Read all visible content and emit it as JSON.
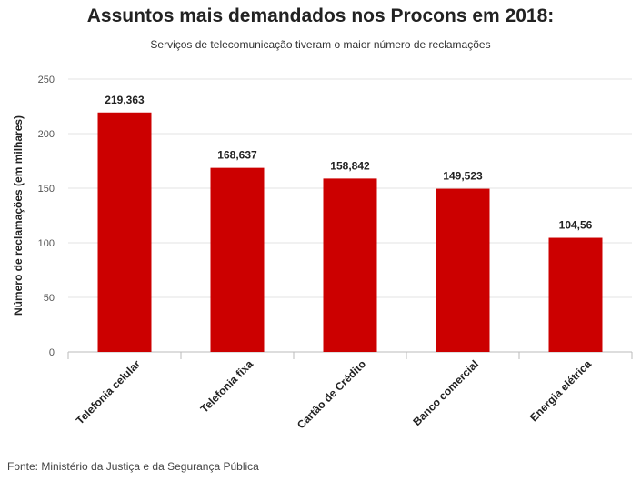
{
  "header": {
    "title": "Assuntos mais demandados nos Procons em 2018:",
    "subtitle": "Serviços de telecomunicação tiveram o maior número de reclamações"
  },
  "footer": {
    "source": "Fonte: Ministério da Justiça e da Segurança Pública"
  },
  "chart_data": {
    "type": "bar",
    "title": "Assuntos mais demandados nos Procons em 2018:",
    "subtitle": "Serviços de telecomunicação tiveram o maior número de reclamações",
    "categories": [
      "Telefonia celular",
      "Telefonia fixa",
      "Cartão de Crédito",
      "Banco comercial",
      "Energia elétrica"
    ],
    "values": [
      219.363,
      168.637,
      158.842,
      149.523,
      104.56
    ],
    "data_labels": [
      "219,363",
      "168,637",
      "158,842",
      "149,523",
      "104,56"
    ],
    "xlabel": "",
    "ylabel": "Número de reclamações (em milhares)",
    "ylim": [
      0,
      250
    ],
    "yticks": [
      0,
      50,
      100,
      150,
      200,
      250
    ],
    "grid": true,
    "legend": "none",
    "bar_color": "#cc0000"
  }
}
